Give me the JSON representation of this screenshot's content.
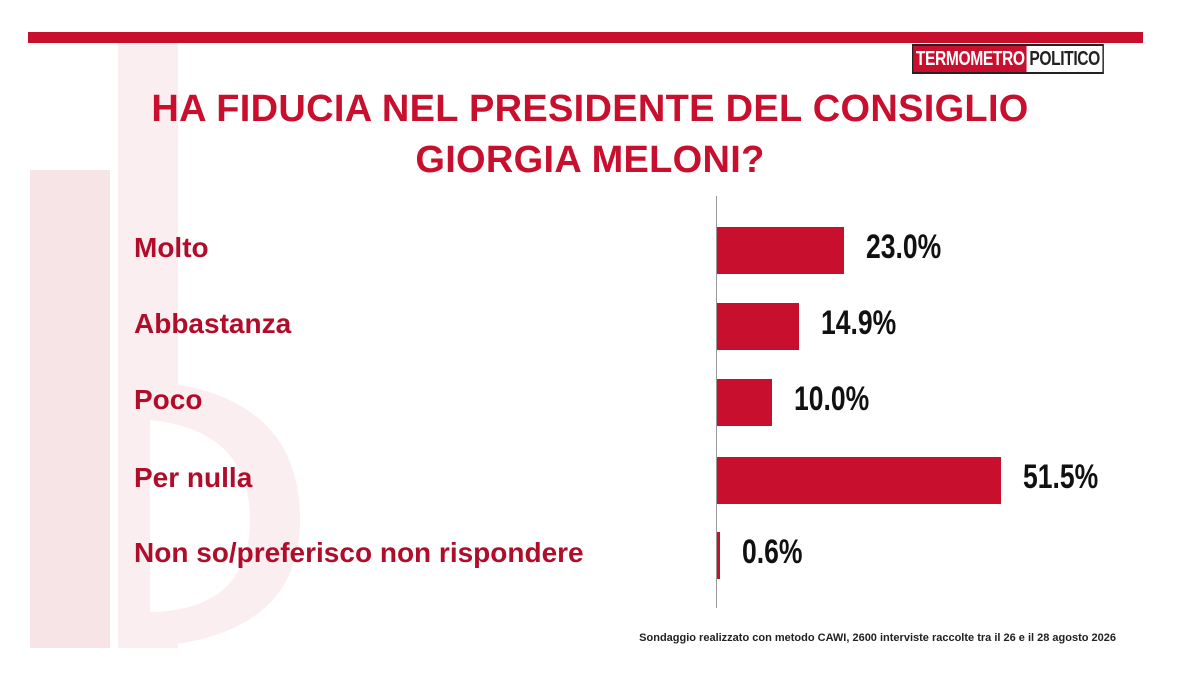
{
  "header": {
    "logo_part1": "TERMOMETRO",
    "logo_part2": "POLITICO"
  },
  "title_line1": "HA FIDUCIA NEL PRESIDENTE DEL CONSIGLIO",
  "title_line2": "GIORGIA MELONI?",
  "footnote": "Sondaggio realizzato con metodo CAWI, 2600 interviste raccolte tra il 26 e il 28 agosto  2026",
  "colors": {
    "accent": "#c8102e",
    "value_text": "#111111"
  },
  "chart_data": {
    "type": "bar",
    "orientation": "horizontal",
    "title": "HA FIDUCIA NEL PRESIDENTE DEL CONSIGLIO GIORGIA MELONI?",
    "categories": [
      "Molto",
      "Abbastanza",
      "Poco",
      "Per nulla",
      "Non so/preferisco non rispondere"
    ],
    "values": [
      23.0,
      14.9,
      10.0,
      51.5,
      0.6
    ],
    "value_labels": [
      "23.0%",
      "14.9%",
      "10.0%",
      "51.5%",
      "0.6%"
    ],
    "unit": "%",
    "xlim": [
      0,
      51.5
    ],
    "grid": false
  }
}
